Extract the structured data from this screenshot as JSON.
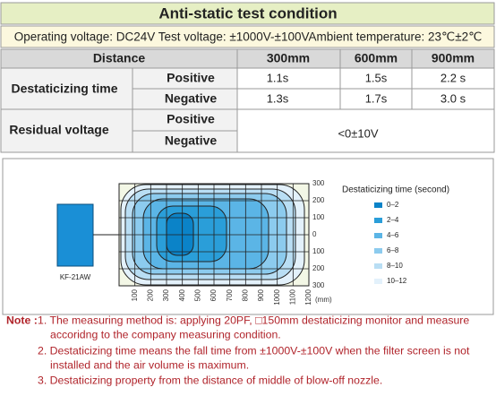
{
  "header": {
    "title": "Anti-static test condition",
    "conditions": "Operating voltage: DC24V Test voltage: ±1000V-±100VAmbient temperature: 23℃±2℃"
  },
  "table": {
    "columns": [
      "Distance",
      "300mm",
      "600mm",
      "900mm"
    ],
    "groups": [
      {
        "label": "Destaticizing time",
        "rows": [
          {
            "polarity": "Positive",
            "values": [
              "1.1s",
              "1.5s",
              "2.2 s"
            ]
          },
          {
            "polarity": "Negative",
            "values": [
              "1.3s",
              "1.7s",
              "3.0 s"
            ]
          }
        ]
      },
      {
        "label": "Residual voltage",
        "rows": [
          {
            "polarity": "Positive"
          },
          {
            "polarity": "Negative"
          }
        ],
        "value": "<0±10V"
      }
    ]
  },
  "diagram": {
    "device_label": "KF-21AW",
    "y_ticks": [
      "300",
      "200",
      "100",
      "0",
      "100",
      "200",
      "300"
    ],
    "x_ticks": [
      "100",
      "200",
      "300",
      "400",
      "500",
      "600",
      "700",
      "800",
      "900",
      "1000",
      "1100",
      "1200"
    ],
    "x_unit": "(mm)",
    "legend": {
      "title": "Destaticizing time (second)",
      "items": [
        "0–2",
        "2–4",
        "4–6",
        "6–8",
        "8–10",
        "10–12"
      ]
    }
  },
  "notes": {
    "label": "Note :",
    "items": [
      [
        "1. The measuring method is: applying 20PF, □150mm destaticizing monitor and measure",
        "accoridng to the company measuring condition."
      ],
      [
        "2. Destaticizing time means the fall time from ±1000V-±100V when the filter screen is not",
        "installed and the air volume is maximum."
      ],
      [
        "3. Destaticizing property from the distance of middle of blow-off nozzle."
      ]
    ]
  }
}
